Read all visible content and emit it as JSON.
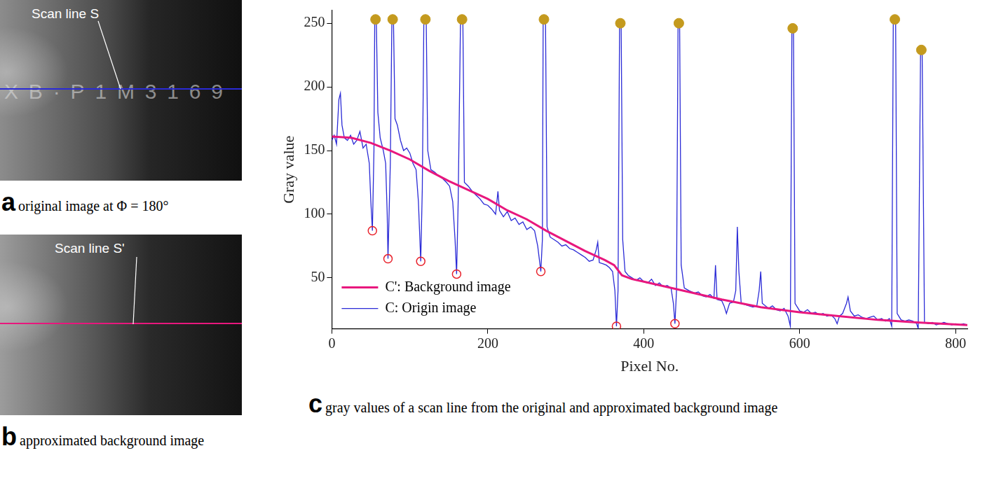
{
  "panels": [
    {
      "label": "a",
      "caption": "original image at Φ = 180°",
      "annotation": "Scan line S",
      "engraving": "XB·P1M3169",
      "line_color": "#2a2ad6"
    },
    {
      "label": "b",
      "caption": "approximated background image",
      "annotation": "Scan line S'",
      "line_color": "#e8177d"
    }
  ],
  "chart_data": {
    "type": "line",
    "label": "c",
    "caption": "gray values of a scan line from the original and approximated background image",
    "x_label": "Pixel No.",
    "y_label": "Gray value",
    "xlim": [
      0,
      815
    ],
    "xticks": [
      0,
      200,
      400,
      600,
      800
    ],
    "ylim": [
      10,
      260
    ],
    "yticks": [
      50,
      100,
      150,
      200,
      250
    ],
    "grid": false,
    "legend": "bottom left",
    "series": [
      {
        "name": "C': Background image",
        "color": "#e8177d",
        "line_style": "solid",
        "x": [
          0,
          25,
          50,
          75,
          100,
          125,
          150,
          175,
          200,
          225,
          250,
          275,
          300,
          325,
          350,
          362,
          372,
          385,
          400,
          450,
          500,
          550,
          600,
          650,
          700,
          750,
          815
        ],
        "values": [
          161,
          160,
          156,
          150,
          143,
          134,
          126,
          119,
          112,
          103,
          96,
          87,
          79,
          71,
          64,
          60,
          52,
          49,
          47,
          40,
          33,
          27,
          23,
          20,
          17,
          15,
          13
        ]
      },
      {
        "name": "C: Origin image",
        "color": "#2a2ad6",
        "line_style": "solid",
        "x": [
          0,
          3,
          6,
          9,
          11,
          13,
          16,
          20,
          24,
          28,
          32,
          36,
          40,
          44,
          48,
          50,
          52,
          54,
          55,
          57,
          59,
          62,
          66,
          69,
          71,
          72,
          75,
          77,
          79,
          81,
          84,
          88,
          92,
          96,
          100,
          104,
          108,
          111,
          114,
          116,
          118,
          121,
          123,
          127,
          132,
          137,
          142,
          147,
          151,
          155,
          158,
          160,
          162,
          165,
          168,
          170,
          175,
          180,
          185,
          190,
          195,
          200,
          205,
          210,
          213,
          215,
          220,
          225,
          230,
          235,
          240,
          245,
          250,
          255,
          260,
          264,
          268,
          270,
          271,
          274,
          276,
          280,
          285,
          290,
          295,
          300,
          305,
          310,
          315,
          320,
          325,
          330,
          335,
          339,
          341,
          343,
          348,
          352,
          356,
          360,
          363,
          365,
          367,
          369,
          371,
          373,
          376,
          380,
          385,
          390,
          395,
          400,
          405,
          410,
          415,
          420,
          425,
          430,
          435,
          438,
          440,
          442,
          444,
          446,
          448,
          452,
          458,
          465,
          470,
          475,
          480,
          485,
          490,
          492,
          494,
          500,
          503,
          506,
          510,
          515,
          518,
          520,
          522,
          525,
          530,
          535,
          540,
          545,
          548,
          550,
          552,
          560,
          565,
          570,
          575,
          580,
          585,
          588,
          590,
          592,
          594,
          600,
          605,
          610,
          615,
          620,
          625,
          630,
          635,
          640,
          645,
          648,
          651,
          655,
          660,
          662,
          665,
          670,
          675,
          680,
          685,
          690,
          695,
          700,
          705,
          710,
          715,
          718,
          720,
          723,
          725,
          730,
          735,
          740,
          745,
          750,
          752,
          755,
          757,
          760,
          765,
          770,
          775,
          780,
          785,
          790,
          795,
          800,
          805,
          810,
          815
        ],
        "values": [
          158,
          162,
          155,
          190,
          195,
          170,
          160,
          158,
          162,
          155,
          158,
          165,
          152,
          155,
          140,
          110,
          87,
          150,
          253,
          253,
          180,
          160,
          150,
          140,
          100,
          65,
          140,
          253,
          253,
          175,
          170,
          158,
          150,
          152,
          148,
          140,
          135,
          110,
          63,
          120,
          253,
          253,
          150,
          135,
          133,
          130,
          128,
          125,
          122,
          110,
          80,
          53,
          110,
          253,
          253,
          125,
          122,
          118,
          115,
          112,
          108,
          107,
          104,
          100,
          118,
          103,
          98,
          102,
          95,
          97,
          92,
          94,
          88,
          90,
          87,
          75,
          55,
          80,
          253,
          253,
          90,
          82,
          80,
          78,
          75,
          76,
          73,
          72,
          70,
          68,
          66,
          63,
          64,
          72,
          78,
          62,
          61,
          60,
          58,
          55,
          40,
          12,
          40,
          250,
          250,
          80,
          55,
          52,
          50,
          48,
          50,
          47,
          46,
          49,
          44,
          46,
          43,
          44,
          42,
          30,
          14,
          40,
          250,
          250,
          60,
          42,
          40,
          38,
          39,
          36,
          35,
          37,
          34,
          60,
          33,
          32,
          28,
          22,
          30,
          31,
          40,
          90,
          55,
          30,
          29,
          28,
          27,
          28,
          40,
          55,
          30,
          26,
          28,
          25,
          24,
          26,
          20,
          12,
          246,
          246,
          30,
          24,
          23,
          25,
          22,
          23,
          21,
          22,
          20,
          21,
          18,
          14,
          20,
          22,
          30,
          35,
          24,
          20,
          21,
          19,
          18,
          19,
          20,
          17,
          18,
          16,
          18,
          12,
          253,
          253,
          22,
          17,
          16,
          17,
          16,
          14,
          10,
          229,
          229,
          15,
          14,
          15,
          13,
          14,
          15,
          14,
          13,
          14,
          13,
          14,
          13
        ]
      }
    ],
    "peaks": {
      "color": "#c49a1e",
      "marker": "circle",
      "x": [
        56,
        78,
        120,
        167,
        272,
        370,
        445,
        591,
        722,
        756
      ],
      "values": [
        253,
        253,
        253,
        253,
        253,
        250,
        250,
        246,
        253,
        229
      ]
    },
    "valleys": {
      "color": "#e8202a",
      "marker": "open_circle",
      "x": [
        52,
        72,
        114,
        160,
        268,
        365,
        440
      ],
      "values": [
        87,
        65,
        63,
        53,
        55,
        12,
        14
      ]
    }
  }
}
